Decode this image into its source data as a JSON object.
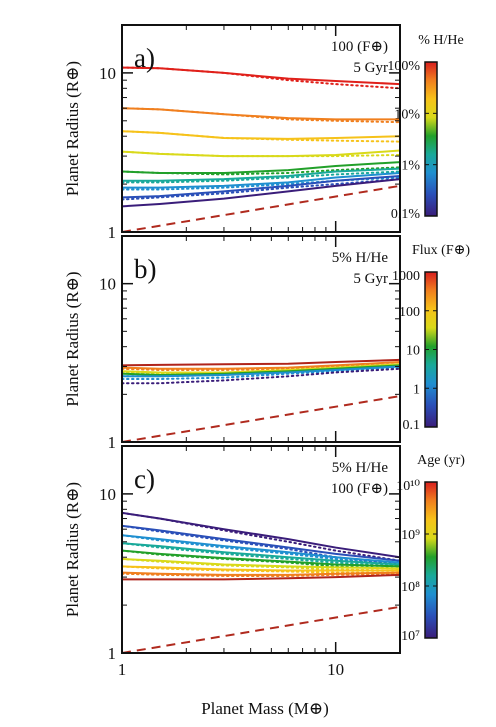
{
  "figure": {
    "x_label": "Planet Mass (M⊕)",
    "shared_x_ticks": [
      "1",
      "10"
    ]
  },
  "chart_data": [
    {
      "panel": "a)",
      "type": "line",
      "x_scale": "log",
      "y_scale": "log",
      "xlim": [
        1,
        20
      ],
      "ylim": [
        1,
        20
      ],
      "ylabel": "Planet Radius (R⊕)",
      "y_ticks": [
        "1",
        "10"
      ],
      "annotation": [
        "100 (F⊕)",
        "5 Gyr"
      ],
      "colorbar": {
        "title": "% H/He",
        "tick_labels": [
          "100%",
          "10%",
          "1%",
          "0.1%"
        ],
        "tick_values": [
          100,
          10,
          1,
          0.1
        ],
        "range": [
          0.1,
          100
        ]
      },
      "series": [
        {
          "param": 100,
          "color": "#e0201a",
          "x": [
            1,
            1.5,
            3,
            6,
            10,
            20
          ],
          "solid": [
            10.8,
            10.7,
            10.0,
            9.2,
            8.9,
            8.5
          ],
          "dotted": [
            10.8,
            10.7,
            10.0,
            9.0,
            8.5,
            8.0
          ]
        },
        {
          "param": 50,
          "color": "#f07f1e",
          "x": [
            1,
            1.5,
            3,
            6,
            10,
            20
          ],
          "solid": [
            6.0,
            5.9,
            5.5,
            5.2,
            5.1,
            5.1
          ],
          "dotted": [
            6.0,
            5.9,
            5.5,
            5.1,
            5.0,
            4.9
          ]
        },
        {
          "param": 20,
          "color": "#f6c21a",
          "x": [
            1,
            1.5,
            3,
            6,
            10,
            20
          ],
          "solid": [
            4.3,
            4.2,
            3.9,
            3.85,
            3.9,
            4.0
          ],
          "dotted": [
            4.3,
            4.2,
            3.9,
            3.8,
            3.75,
            3.7
          ]
        },
        {
          "param": 10,
          "color": "#d9d91a",
          "x": [
            1,
            1.5,
            3,
            6,
            10,
            20
          ],
          "solid": [
            3.2,
            3.1,
            3.0,
            3.0,
            3.05,
            3.25
          ],
          "dotted": [
            3.2,
            3.1,
            3.0,
            3.0,
            3.0,
            3.05
          ]
        },
        {
          "param": 5,
          "color": "#22a02a",
          "x": [
            1,
            1.5,
            3,
            6,
            10,
            20
          ],
          "solid": [
            2.4,
            2.35,
            2.35,
            2.45,
            2.6,
            2.75
          ],
          "dotted": [
            2.4,
            2.35,
            2.3,
            2.35,
            2.45,
            2.55
          ]
        },
        {
          "param": 2,
          "color": "#19a99a",
          "x": [
            1,
            1.5,
            3,
            6,
            10,
            20
          ],
          "solid": [
            2.1,
            2.1,
            2.15,
            2.25,
            2.4,
            2.5
          ],
          "dotted": [
            2.05,
            2.05,
            2.1,
            2.2,
            2.3,
            2.4
          ]
        },
        {
          "param": 1,
          "color": "#1f8fd0",
          "x": [
            1,
            1.5,
            3,
            6,
            10,
            20
          ],
          "solid": [
            1.9,
            1.9,
            1.95,
            2.05,
            2.2,
            2.35
          ],
          "dotted": [
            1.85,
            1.85,
            1.9,
            2.0,
            2.1,
            2.2
          ]
        },
        {
          "param": 0.5,
          "color": "#2a4fb8",
          "x": [
            1,
            1.5,
            3,
            6,
            10,
            20
          ],
          "solid": [
            1.65,
            1.68,
            1.8,
            1.95,
            2.1,
            2.25
          ],
          "dotted": [
            1.6,
            1.65,
            1.75,
            1.9,
            2.0,
            2.15
          ]
        },
        {
          "param": 0.1,
          "color": "#3a1d7a",
          "x": [
            1,
            1.5,
            3,
            6,
            10,
            20
          ],
          "solid": [
            1.45,
            1.5,
            1.62,
            1.8,
            1.95,
            2.15
          ],
          "dotted": []
        }
      ],
      "core_line": {
        "color": "#b02a1e",
        "x": [
          1,
          20
        ],
        "y": [
          1.0,
          1.95
        ]
      }
    },
    {
      "panel": "b)",
      "type": "line",
      "x_scale": "log",
      "y_scale": "log",
      "xlim": [
        1,
        20
      ],
      "ylim": [
        1,
        20
      ],
      "ylabel": "Planet Radius (R⊕)",
      "y_ticks": [
        "1",
        "10"
      ],
      "annotation": [
        "5% H/He",
        "5 Gyr"
      ],
      "colorbar": {
        "title": "Flux (F⊕)",
        "tick_labels": [
          "1000",
          "100",
          "10",
          "1",
          "0.1"
        ],
        "tick_values": [
          1000,
          100,
          10,
          1,
          0.1
        ],
        "range": [
          0.1,
          1000
        ]
      },
      "series": [
        {
          "param": 1000,
          "color": "#b0241a",
          "x": [
            1,
            1.5,
            3,
            6,
            10,
            20
          ],
          "solid": [
            3.05,
            3.07,
            3.1,
            3.12,
            3.2,
            3.3
          ],
          "dotted": []
        },
        {
          "param": 100,
          "color": "#f07f1e",
          "x": [
            1,
            1.5,
            3,
            6,
            10,
            20
          ],
          "solid": [
            2.95,
            2.9,
            2.9,
            2.95,
            3.05,
            3.2
          ],
          "dotted": [
            2.9,
            2.85,
            2.85,
            2.9,
            3.0,
            3.1
          ]
        },
        {
          "param": 30,
          "color": "#d9d91a",
          "x": [
            1,
            1.5,
            3,
            6,
            10,
            20
          ],
          "solid": [
            2.8,
            2.75,
            2.75,
            2.85,
            2.95,
            3.1
          ],
          "dotted": [
            2.75,
            2.7,
            2.7,
            2.8,
            2.9,
            3.05
          ]
        },
        {
          "param": 10,
          "color": "#22a02a",
          "x": [
            1,
            1.5,
            3,
            6,
            10,
            20
          ],
          "solid": [
            2.7,
            2.65,
            2.7,
            2.8,
            2.9,
            3.05
          ],
          "dotted": [
            2.6,
            2.6,
            2.65,
            2.75,
            2.85,
            3.0
          ]
        },
        {
          "param": 1,
          "color": "#1f8fd0",
          "x": [
            1,
            1.5,
            3,
            6,
            10,
            20
          ],
          "solid": [
            2.6,
            2.6,
            2.65,
            2.75,
            2.85,
            3.0
          ],
          "dotted": [
            2.5,
            2.5,
            2.55,
            2.7,
            2.8,
            2.95
          ]
        },
        {
          "param": 0.1,
          "color": "#3a1d7a",
          "x": [
            1,
            1.5,
            3,
            6,
            10,
            20
          ],
          "solid": [],
          "dotted": [
            2.35,
            2.35,
            2.45,
            2.6,
            2.75,
            2.9
          ]
        }
      ],
      "core_line": {
        "color": "#b02a1e",
        "x": [
          1,
          20
        ],
        "y": [
          1.0,
          1.95
        ]
      }
    },
    {
      "panel": "c)",
      "type": "line",
      "x_scale": "log",
      "y_scale": "log",
      "xlim": [
        1,
        20
      ],
      "ylim": [
        1,
        20
      ],
      "ylabel": "Planet Radius (R⊕)",
      "y_ticks": [
        "1",
        "10"
      ],
      "annotation": [
        "5% H/He",
        "100 (F⊕)"
      ],
      "colorbar": {
        "title": "Age (yr)",
        "tick_labels": [
          "10¹⁰",
          "10⁹",
          "10⁸",
          "10⁷"
        ],
        "tick_values": [
          10000000000.0,
          1000000000.0,
          100000000.0,
          10000000.0
        ],
        "range": [
          10000000.0,
          10000000000.0
        ]
      },
      "series": [
        {
          "param": 10000000.0,
          "color": "#3a1d7a",
          "x": [
            1,
            1.5,
            3,
            6,
            10,
            20
          ],
          "solid": [
            7.6,
            7.0,
            6.0,
            5.2,
            4.6,
            4.0
          ],
          "dotted": [
            7.6,
            7.0,
            5.9,
            5.0,
            4.4,
            3.8
          ]
        },
        {
          "param": 20000000.0,
          "color": "#2a4fb8",
          "x": [
            1,
            1.5,
            3,
            6,
            10,
            20
          ],
          "solid": [
            6.3,
            5.9,
            5.2,
            4.6,
            4.2,
            3.8
          ],
          "dotted": [
            6.3,
            5.8,
            5.1,
            4.5,
            4.0,
            3.6
          ]
        },
        {
          "param": 50000000.0,
          "color": "#1f8fd0",
          "x": [
            1,
            1.5,
            3,
            6,
            10,
            20
          ],
          "solid": [
            5.5,
            5.2,
            4.7,
            4.3,
            4.0,
            3.7
          ],
          "dotted": [
            5.5,
            5.1,
            4.6,
            4.2,
            3.9,
            3.55
          ]
        },
        {
          "param": 100000000.0,
          "color": "#19a99a",
          "x": [
            1,
            1.5,
            3,
            6,
            10,
            20
          ],
          "solid": [
            4.9,
            4.7,
            4.3,
            4.0,
            3.8,
            3.6
          ],
          "dotted": [
            4.9,
            4.6,
            4.2,
            3.9,
            3.7,
            3.5
          ]
        },
        {
          "param": 200000000.0,
          "color": "#22a02a",
          "x": [
            1,
            1.5,
            3,
            6,
            10,
            20
          ],
          "solid": [
            4.4,
            4.2,
            3.95,
            3.75,
            3.6,
            3.5
          ],
          "dotted": [
            4.4,
            4.15,
            3.9,
            3.7,
            3.5,
            3.4
          ]
        },
        {
          "param": 500000000.0,
          "color": "#d9d91a",
          "x": [
            1,
            1.5,
            3,
            6,
            10,
            20
          ],
          "solid": [
            3.9,
            3.8,
            3.6,
            3.5,
            3.45,
            3.4
          ],
          "dotted": [
            3.9,
            3.75,
            3.55,
            3.45,
            3.35,
            3.3
          ]
        },
        {
          "param": 1000000000.0,
          "color": "#f6c21a",
          "x": [
            1,
            1.5,
            3,
            6,
            10,
            20
          ],
          "solid": [
            3.5,
            3.45,
            3.35,
            3.3,
            3.3,
            3.3
          ],
          "dotted": [
            3.5,
            3.4,
            3.3,
            3.25,
            3.2,
            3.2
          ]
        },
        {
          "param": 3000000000.0,
          "color": "#f07f1e",
          "x": [
            1,
            1.5,
            3,
            6,
            10,
            20
          ],
          "solid": [
            3.2,
            3.15,
            3.1,
            3.1,
            3.15,
            3.2
          ],
          "dotted": [
            3.15,
            3.1,
            3.05,
            3.05,
            3.1,
            3.15
          ]
        },
        {
          "param": 10000000000.0,
          "color": "#b0241a",
          "x": [
            1,
            1.5,
            3,
            6,
            10,
            20
          ],
          "solid": [
            2.9,
            2.9,
            2.9,
            2.95,
            3.0,
            3.1
          ],
          "dotted": []
        }
      ],
      "core_line": {
        "color": "#b02a1e",
        "x": [
          1,
          20
        ],
        "y": [
          1.0,
          1.95
        ]
      }
    }
  ]
}
